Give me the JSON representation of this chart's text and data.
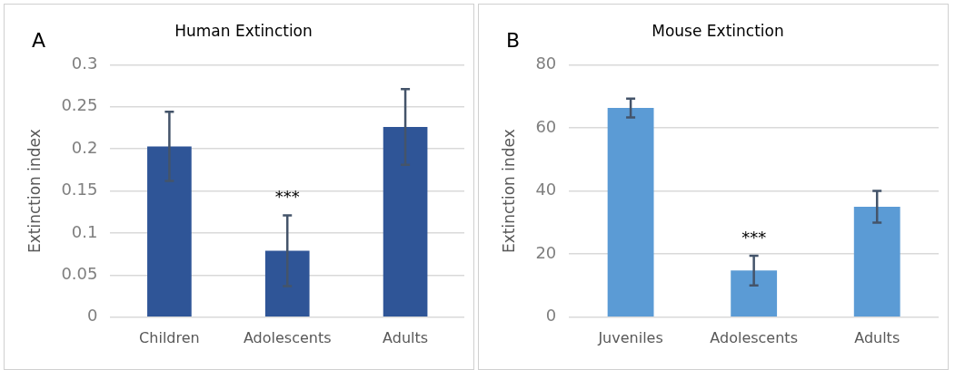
{
  "chart_data": [
    {
      "type": "bar",
      "title": "Human Extinction",
      "ylabel": "Extinction index",
      "categories": [
        "Children",
        "Adolescents",
        "Adults"
      ],
      "values": [
        0.203,
        0.079,
        0.226
      ],
      "errors": [
        0.041,
        0.042,
        0.045
      ],
      "color": "#2f5597",
      "ylim": [
        0,
        0.3
      ],
      "yticks": [
        0,
        0.05,
        0.1,
        0.15,
        0.2,
        0.25,
        0.3
      ],
      "grid": "y",
      "annotations": [
        "A",
        "***"
      ]
    },
    {
      "type": "bar",
      "title": "Mouse Extinction",
      "ylabel": "Extinction index",
      "categories": [
        "Juveniles",
        "Adolescents",
        "Adults"
      ],
      "values": [
        66.3,
        14.8,
        35
      ],
      "errors": [
        3,
        4.7,
        5
      ],
      "color": "#5b9bd5",
      "ylim": [
        0,
        80
      ],
      "yticks": [
        0,
        20,
        40,
        60,
        80
      ],
      "grid": "y",
      "annotations": [
        "B",
        "***"
      ]
    }
  ]
}
